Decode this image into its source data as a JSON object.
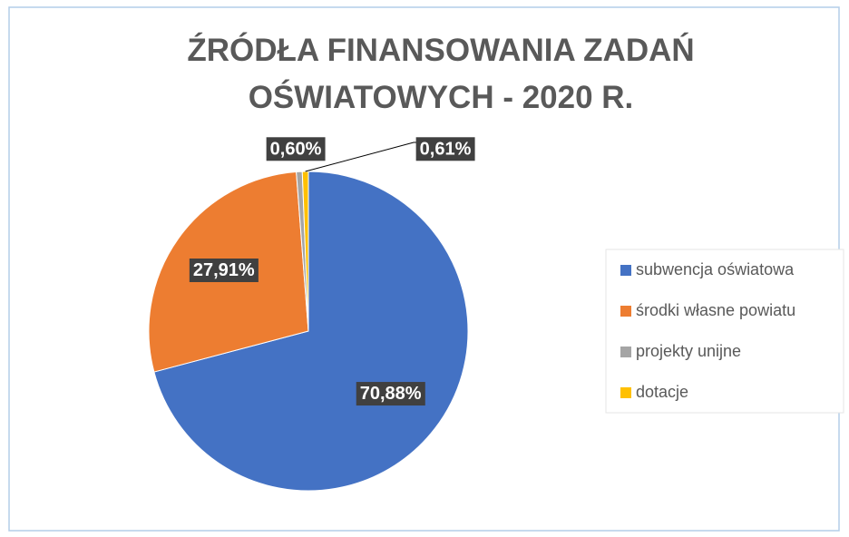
{
  "chart_data": {
    "type": "pie",
    "title": "ŹRÓDŁA FINANSOWANIA ZADAŃ OŚWIATOWYCH - 2020 R.",
    "categories": [
      "subwencja oświatowa",
      "środki własne powiatu",
      "projekty unijne",
      "dotacje"
    ],
    "values": [
      70.88,
      27.91,
      0.6,
      0.61
    ],
    "value_labels": [
      "70,88%",
      "27,91%",
      "0,60%",
      "0,61%"
    ],
    "colors": [
      "#4472c4",
      "#ed7d31",
      "#a5a5a5",
      "#ffc000"
    ],
    "legend": "right"
  }
}
